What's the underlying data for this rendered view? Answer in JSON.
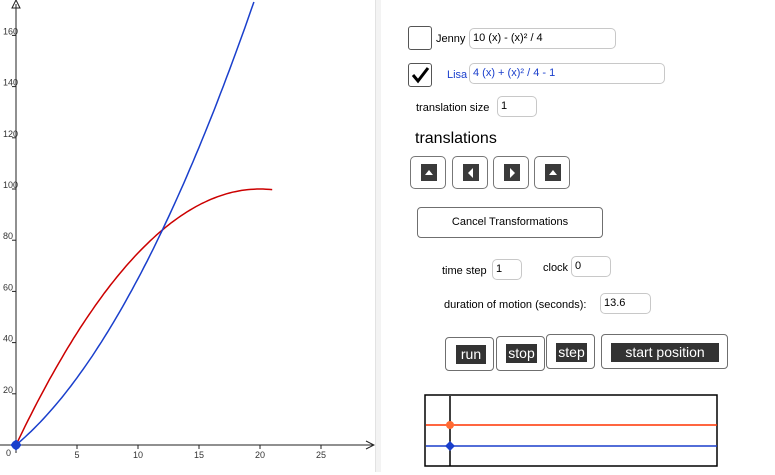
{
  "graph": {
    "x_ticks": [
      "5",
      "10",
      "15",
      "20",
      "25"
    ],
    "y_ticks": [
      "20",
      "40",
      "60",
      "80",
      "100",
      "120",
      "140",
      "160"
    ],
    "origin_label": "0",
    "colors": {
      "jenny": "#cc0000",
      "lisa": "#1a3fcc",
      "axis": "#222222"
    }
  },
  "controls": {
    "jenny": {
      "checked": false,
      "label": "Jenny",
      "expression": "10 (x) - (x)² / 4"
    },
    "lisa": {
      "checked": true,
      "label": "Lisa",
      "expression": "4 (x) + (x)² / 4 - 1"
    },
    "translation_size": {
      "label": "translation size",
      "value": "1"
    },
    "translations_title": "translations",
    "cancel_label": "Cancel Transformations",
    "time_step": {
      "label": "time step",
      "value": "1"
    },
    "clock": {
      "label": "clock",
      "value": "0"
    },
    "duration": {
      "label": "duration of motion (seconds):",
      "value": "13.6"
    },
    "buttons": {
      "run": "run",
      "stop": "stop",
      "step": "step",
      "start_position": "start position"
    }
  },
  "track_colors": {
    "jenny": "#ff3300",
    "lisa": "#1a3fcc"
  }
}
